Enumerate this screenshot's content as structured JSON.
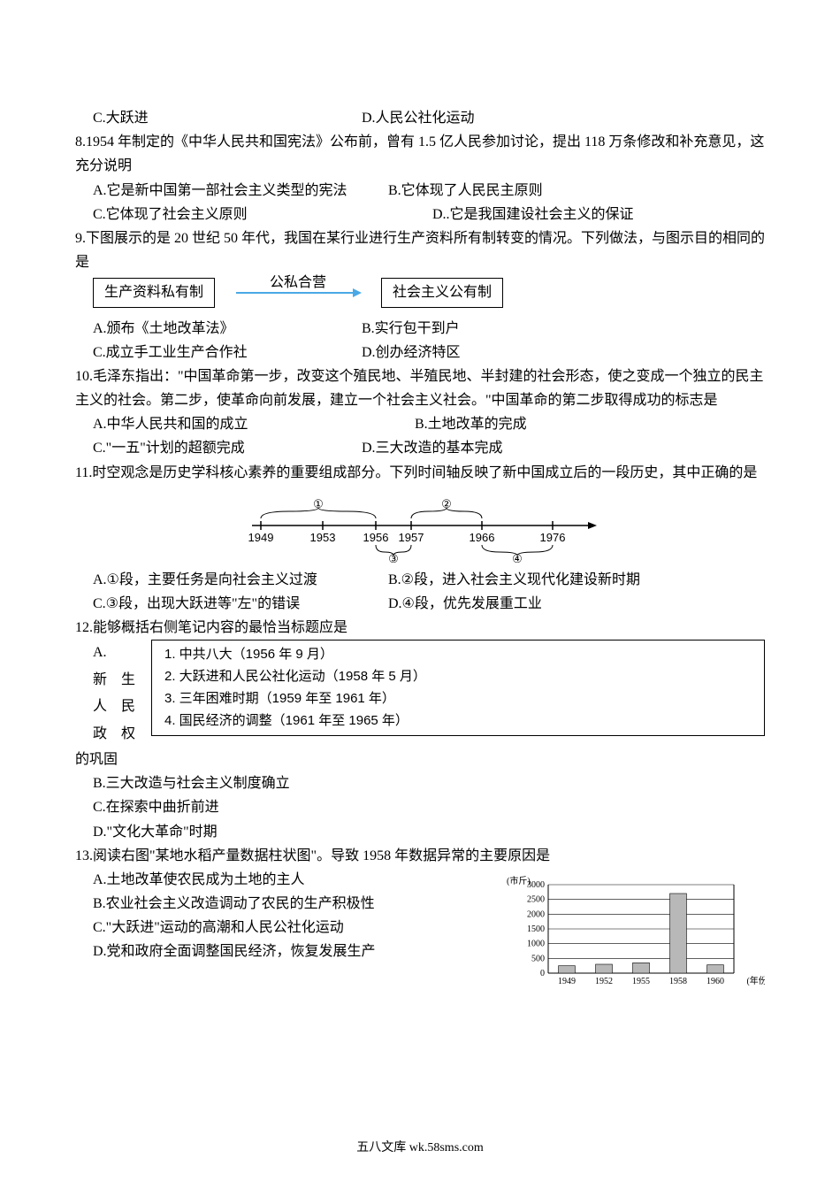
{
  "q7": {
    "C": "C.大跃进",
    "D": "D.人民公社化运动"
  },
  "q8": {
    "stem": "8.1954 年制定的《中华人民共和国宪法》公布前，曾有 1.5 亿人民参加讨论，提出 118 万条修改和补充意见，这充分说明",
    "A": "A.它是新中国第一部社会主义类型的宪法",
    "B": "B.它体现了人民民主原则",
    "C": "C.它体现了社会主义原则",
    "D": "D..它是我国建设社会主义的保证"
  },
  "q9": {
    "stem": "9.下图展示的是 20 世纪 50 年代，我国在某行业进行生产资料所有制转变的情况。下列做法，与图示目的相同的是",
    "box1": "生产资料私有制",
    "arrow_label": "公私合营",
    "box2": "社会主义公有制",
    "arrow_color": "#4aa8e6",
    "A": "A.颁布《土地改革法》",
    "B": "B.实行包干到户",
    "C": "C.成立手工业生产合作社",
    "D": "D.创办经济特区"
  },
  "q10": {
    "stem": "10.毛泽东指出：\"中国革命第一步，改变这个殖民地、半殖民地、半封建的社会形态，使之变成一个独立的民主主义的社会。第二步，使革命向前发展，建立一个社会主义社会。\"中国革命的第二步取得成功的标志是",
    "A": "A.中华人民共和国的成立",
    "B": "B.土地改革的完成",
    "C": "C.\"一五\"计划的超额完成",
    "D": "D.三大改造的基本完成"
  },
  "q11": {
    "stem": "11.时空观念是历史学科核心素养的重要组成部分。下列时间轴反映了新中国成立后的一段历史，其中正确的是",
    "timeline": {
      "years": [
        "1949",
        "1953",
        "1956",
        "1957",
        "1966",
        "1976"
      ],
      "circles_top": [
        "①",
        "②"
      ],
      "circles_bottom": [
        "③",
        "④"
      ],
      "line_color": "#000000",
      "font_size": 13
    },
    "A": "A.①段，主要任务是向社会主义过渡",
    "B": "B.②段，进入社会主义现代化建设新时期",
    "C": "C.③段，出现大跃进等\"左\"的错误",
    "D": "D.④段，优先发展重工业"
  },
  "q12": {
    "stem": "12.能够概括右侧笔记内容的最恰当标题应是",
    "left_A": "A.",
    "left_lines": [
      "新　生",
      "人　民",
      "政　权"
    ],
    "after": "的巩固",
    "box_lines": [
      "1. 中共八大（1956 年 9 月）",
      "2. 大跃进和人民公社化运动（1958 年 5 月）",
      "3. 三年困难时期（1959 年至 1961 年）",
      "4. 国民经济的调整（1961 年至 1965 年）"
    ],
    "B": "B.三大改造与社会主义制度确立",
    "C": "C.在探索中曲折前进",
    "D": "D.\"文化大革命\"时期"
  },
  "q13": {
    "stem": "13.阅读右图\"某地水稻产量数据柱状图\"。导致 1958 年数据异常的主要原因是",
    "A": "A.土地改革使农民成为土地的主人",
    "B": "B.农业社会主义改造调动了农民的生产积极性",
    "C": "C.\"大跃进\"运动的高潮和人民公社化运动",
    "D": "D.党和政府全面调整国民经济，恢复发展生产",
    "chart": {
      "type": "bar",
      "y_unit": "(市斤)",
      "x_unit": "(年份)",
      "categories": [
        "1949",
        "1952",
        "1955",
        "1958",
        "1960"
      ],
      "values": [
        250,
        300,
        350,
        2700,
        280
      ],
      "ylim": [
        0,
        3000
      ],
      "ytick_step": 500,
      "bar_color": "#b8b8b8",
      "border_color": "#000000",
      "grid_color": "#000000",
      "background_color": "#ffffff",
      "font_size": 10,
      "bar_width": 0.45
    }
  },
  "footer": "五八文库 wk.58sms.com"
}
